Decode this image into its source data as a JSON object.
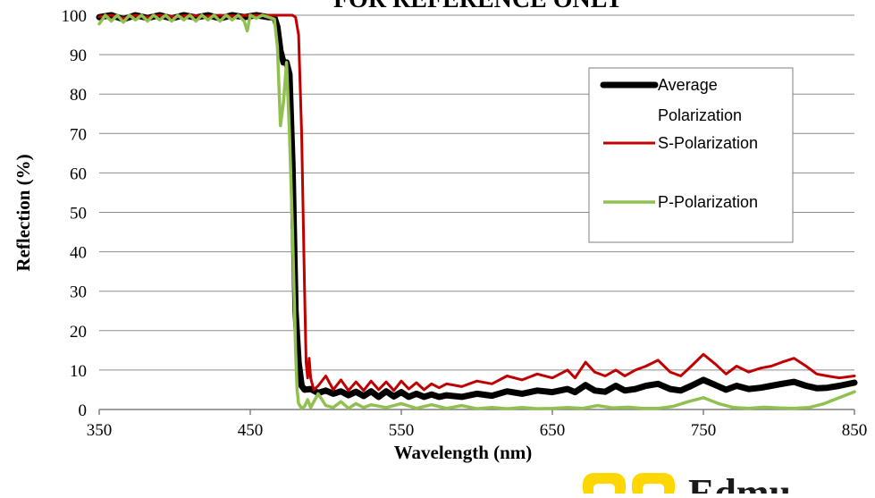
{
  "chart_data": {
    "type": "line",
    "title": "FOR REFERENCE ONLY",
    "xlabel": "Wavelength (nm)",
    "ylabel": "Reflection (%)",
    "xlim": [
      350,
      850
    ],
    "ylim": [
      0,
      100
    ],
    "xticks": [
      350,
      450,
      550,
      650,
      750,
      850
    ],
    "yticks": [
      0,
      10,
      20,
      30,
      40,
      50,
      60,
      70,
      80,
      90,
      100
    ],
    "grid": "horizontal",
    "legend_position": "top-right",
    "legend": {
      "avg_line1": "Average",
      "avg_line2": "Polarization",
      "s": "S-Polarization",
      "p": "P-Polarization"
    },
    "series": [
      {
        "key": "avg",
        "color": "#000000",
        "width": 7,
        "points": [
          [
            350,
            99.5
          ],
          [
            358,
            100
          ],
          [
            366,
            99
          ],
          [
            374,
            100
          ],
          [
            382,
            99.3
          ],
          [
            390,
            100
          ],
          [
            398,
            99.2
          ],
          [
            406,
            100
          ],
          [
            414,
            99.4
          ],
          [
            422,
            100
          ],
          [
            430,
            99.2
          ],
          [
            438,
            100
          ],
          [
            446,
            99.5
          ],
          [
            454,
            100
          ],
          [
            462,
            99.5
          ],
          [
            466,
            99.5
          ],
          [
            468,
            97
          ],
          [
            470,
            91
          ],
          [
            472,
            88
          ],
          [
            474,
            88
          ],
          [
            476,
            85
          ],
          [
            478,
            62
          ],
          [
            480,
            25
          ],
          [
            482,
            12
          ],
          [
            484,
            6
          ],
          [
            486,
            5
          ],
          [
            490,
            5.2
          ],
          [
            495,
            4.2
          ],
          [
            500,
            4.8
          ],
          [
            505,
            4
          ],
          [
            510,
            4.6
          ],
          [
            515,
            3.6
          ],
          [
            520,
            4.5
          ],
          [
            525,
            3.4
          ],
          [
            530,
            4.6
          ],
          [
            535,
            3.2
          ],
          [
            540,
            4.6
          ],
          [
            545,
            3.3
          ],
          [
            550,
            4.4
          ],
          [
            555,
            3.2
          ],
          [
            560,
            4
          ],
          [
            565,
            3.2
          ],
          [
            570,
            3.8
          ],
          [
            575,
            3.2
          ],
          [
            580,
            3.6
          ],
          [
            590,
            3.2
          ],
          [
            600,
            4
          ],
          [
            610,
            3.5
          ],
          [
            620,
            4.6
          ],
          [
            630,
            4
          ],
          [
            640,
            4.8
          ],
          [
            650,
            4.4
          ],
          [
            660,
            5.2
          ],
          [
            665,
            4.4
          ],
          [
            672,
            6.2
          ],
          [
            678,
            4.8
          ],
          [
            685,
            4.5
          ],
          [
            692,
            6
          ],
          [
            698,
            4.8
          ],
          [
            705,
            5.2
          ],
          [
            712,
            6
          ],
          [
            720,
            6.5
          ],
          [
            728,
            5.2
          ],
          [
            735,
            4.8
          ],
          [
            742,
            6
          ],
          [
            750,
            7.5
          ],
          [
            758,
            6.2
          ],
          [
            765,
            5
          ],
          [
            772,
            6
          ],
          [
            780,
            5.2
          ],
          [
            788,
            5.5
          ],
          [
            795,
            6
          ],
          [
            802,
            6.5
          ],
          [
            810,
            7
          ],
          [
            818,
            6
          ],
          [
            825,
            5.4
          ],
          [
            832,
            5.5
          ],
          [
            840,
            6
          ],
          [
            850,
            6.8
          ]
        ]
      },
      {
        "key": "s",
        "color": "#c00000",
        "width": 3,
        "points": [
          [
            350,
            99.6
          ],
          [
            358,
            100
          ],
          [
            366,
            99.2
          ],
          [
            374,
            100
          ],
          [
            382,
            99.5
          ],
          [
            390,
            100
          ],
          [
            400,
            99.6
          ],
          [
            410,
            100
          ],
          [
            420,
            99.7
          ],
          [
            430,
            100
          ],
          [
            440,
            99.8
          ],
          [
            450,
            100
          ],
          [
            460,
            100
          ],
          [
            470,
            100
          ],
          [
            478,
            100
          ],
          [
            480,
            99.5
          ],
          [
            482,
            95
          ],
          [
            484,
            70
          ],
          [
            486,
            30
          ],
          [
            487,
            12
          ],
          [
            488,
            8
          ],
          [
            489,
            13
          ],
          [
            490,
            8
          ],
          [
            492,
            5
          ],
          [
            495,
            6
          ],
          [
            500,
            8.5
          ],
          [
            505,
            5
          ],
          [
            510,
            7.5
          ],
          [
            515,
            4.8
          ],
          [
            520,
            7
          ],
          [
            525,
            4.8
          ],
          [
            530,
            7.2
          ],
          [
            535,
            5
          ],
          [
            540,
            7
          ],
          [
            545,
            4.8
          ],
          [
            550,
            7.2
          ],
          [
            555,
            5.2
          ],
          [
            560,
            6.8
          ],
          [
            565,
            5
          ],
          [
            570,
            6.5
          ],
          [
            575,
            5.5
          ],
          [
            580,
            6.5
          ],
          [
            590,
            5.8
          ],
          [
            600,
            7.2
          ],
          [
            610,
            6.5
          ],
          [
            620,
            8.5
          ],
          [
            630,
            7.5
          ],
          [
            640,
            9
          ],
          [
            650,
            8
          ],
          [
            660,
            10
          ],
          [
            665,
            8
          ],
          [
            672,
            12
          ],
          [
            678,
            9.5
          ],
          [
            685,
            8.5
          ],
          [
            692,
            10
          ],
          [
            698,
            8.5
          ],
          [
            705,
            10
          ],
          [
            712,
            11
          ],
          [
            720,
            12.5
          ],
          [
            728,
            9.5
          ],
          [
            735,
            8.5
          ],
          [
            742,
            11
          ],
          [
            750,
            14
          ],
          [
            758,
            11.5
          ],
          [
            765,
            9
          ],
          [
            772,
            11
          ],
          [
            780,
            9.5
          ],
          [
            788,
            10.5
          ],
          [
            795,
            11
          ],
          [
            802,
            12
          ],
          [
            810,
            13
          ],
          [
            818,
            11
          ],
          [
            825,
            9
          ],
          [
            832,
            8.5
          ],
          [
            840,
            8
          ],
          [
            850,
            8.5
          ]
        ]
      },
      {
        "key": "p",
        "color": "#92c050",
        "width": 3.5,
        "points": [
          [
            350,
            97.8
          ],
          [
            354,
            100
          ],
          [
            358,
            98.5
          ],
          [
            362,
            100
          ],
          [
            366,
            98.2
          ],
          [
            370,
            100
          ],
          [
            374,
            98.8
          ],
          [
            378,
            100
          ],
          [
            382,
            98.5
          ],
          [
            386,
            100
          ],
          [
            390,
            98.8
          ],
          [
            394,
            100
          ],
          [
            398,
            98.5
          ],
          [
            402,
            100
          ],
          [
            406,
            98.8
          ],
          [
            410,
            100
          ],
          [
            414,
            98.5
          ],
          [
            418,
            100
          ],
          [
            422,
            98.8
          ],
          [
            426,
            100
          ],
          [
            430,
            98.5
          ],
          [
            434,
            100
          ],
          [
            438,
            98.8
          ],
          [
            442,
            100
          ],
          [
            446,
            98.5
          ],
          [
            448,
            96
          ],
          [
            450,
            100
          ],
          [
            454,
            99.2
          ],
          [
            458,
            100
          ],
          [
            462,
            99.5
          ],
          [
            466,
            99
          ],
          [
            468,
            92
          ],
          [
            470,
            72
          ],
          [
            472,
            78
          ],
          [
            474,
            88
          ],
          [
            476,
            70
          ],
          [
            478,
            45
          ],
          [
            480,
            15
          ],
          [
            481,
            5
          ],
          [
            482,
            1.5
          ],
          [
            484,
            0.3
          ],
          [
            486,
            0.8
          ],
          [
            488,
            2.5
          ],
          [
            490,
            0.5
          ],
          [
            495,
            4
          ],
          [
            500,
            1
          ],
          [
            505,
            0.5
          ],
          [
            510,
            2
          ],
          [
            515,
            0.3
          ],
          [
            520,
            1.5
          ],
          [
            525,
            0.5
          ],
          [
            530,
            1.2
          ],
          [
            540,
            0.5
          ],
          [
            550,
            1.5
          ],
          [
            560,
            0.3
          ],
          [
            570,
            1.2
          ],
          [
            580,
            0.3
          ],
          [
            590,
            1
          ],
          [
            600,
            0.2
          ],
          [
            610,
            0.5
          ],
          [
            620,
            0.2
          ],
          [
            630,
            0.5
          ],
          [
            640,
            0.2
          ],
          [
            650,
            0.3
          ],
          [
            660,
            0.5
          ],
          [
            670,
            0.3
          ],
          [
            680,
            1
          ],
          [
            690,
            0.4
          ],
          [
            700,
            0.6
          ],
          [
            710,
            0.3
          ],
          [
            720,
            0.3
          ],
          [
            730,
            0.8
          ],
          [
            740,
            2
          ],
          [
            750,
            3
          ],
          [
            760,
            1.5
          ],
          [
            770,
            0.5
          ],
          [
            780,
            0.3
          ],
          [
            790,
            0.6
          ],
          [
            800,
            0.4
          ],
          [
            810,
            0.3
          ],
          [
            820,
            0.5
          ],
          [
            830,
            1.5
          ],
          [
            840,
            3
          ],
          [
            850,
            4.5
          ]
        ]
      }
    ]
  },
  "branding": {
    "logo_text": "Edmu",
    "logo_colors": {
      "yellow": "#ffd700",
      "text": "#1a1a1a"
    }
  }
}
